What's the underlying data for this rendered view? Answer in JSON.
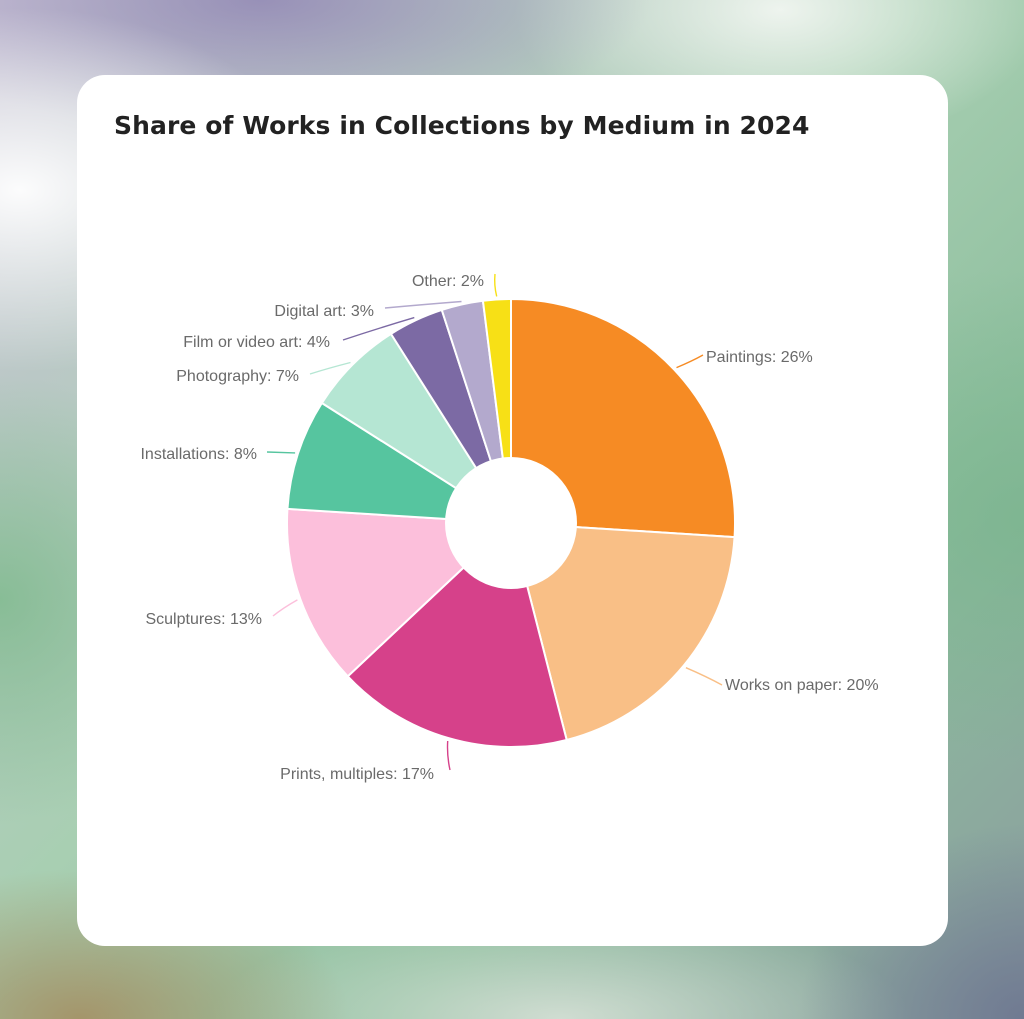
{
  "chart_data": {
    "type": "pie",
    "title": "Share of Works in Collections by Medium in 2024",
    "donut": true,
    "unit": "%",
    "slices": [
      {
        "label": "Paintings: 26%",
        "category": "Paintings",
        "value": 26,
        "color": "#f68b24"
      },
      {
        "label": "Works on paper: 20%",
        "category": "Works on paper",
        "value": 20,
        "color": "#f9bf86"
      },
      {
        "label": "Prints, multiples: 17%",
        "category": "Prints, multiples",
        "value": 17,
        "color": "#d6418a"
      },
      {
        "label": "Sculptures: 13%",
        "category": "Sculptures",
        "value": 13,
        "color": "#fcbfdb"
      },
      {
        "label": "Installations: 8%",
        "category": "Installations",
        "value": 8,
        "color": "#56c59f"
      },
      {
        "label": "Photography: 7%",
        "category": "Photography",
        "value": 7,
        "color": "#b5e6d3"
      },
      {
        "label": "Film or video art: 4%",
        "category": "Film or video art",
        "value": 4,
        "color": "#7c6aa4"
      },
      {
        "label": "Digital art: 3%",
        "category": "Digital art",
        "value": 3,
        "color": "#b3a9cd"
      },
      {
        "label": "Other: 2%",
        "category": "Other",
        "value": 2,
        "color": "#f7e016"
      }
    ]
  }
}
